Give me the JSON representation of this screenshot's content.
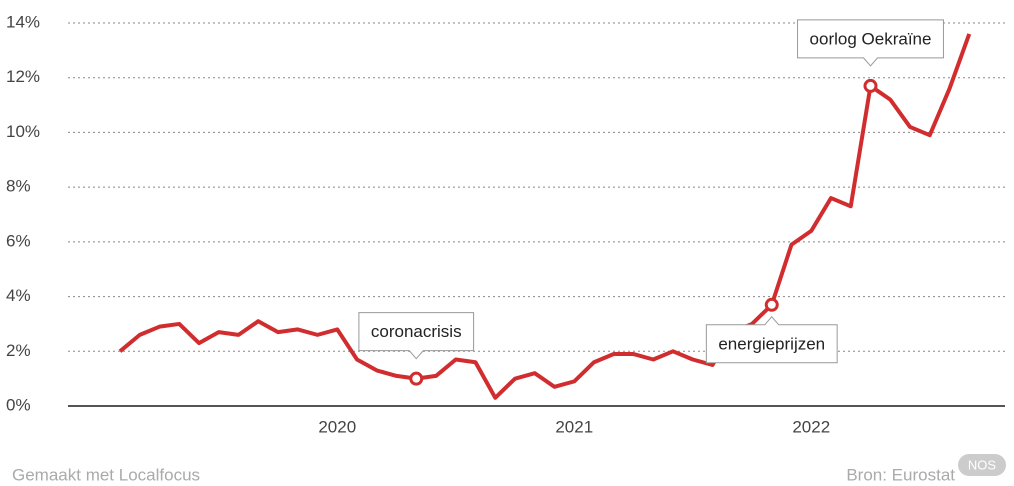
{
  "chart_data": {
    "type": "line",
    "categories": [
      null,
      null,
      null,
      null,
      null,
      null,
      null,
      null,
      null,
      null,
      null,
      "2020",
      null,
      null,
      null,
      null,
      null,
      null,
      null,
      null,
      null,
      null,
      null,
      "2021",
      null,
      null,
      null,
      null,
      null,
      null,
      null,
      null,
      null,
      null,
      null,
      "2022",
      null,
      null,
      null,
      null,
      null,
      null,
      null,
      null
    ],
    "values": [
      2.0,
      2.6,
      2.9,
      3.0,
      2.3,
      2.7,
      2.6,
      3.1,
      2.7,
      2.8,
      2.6,
      2.8,
      1.7,
      1.3,
      1.1,
      1.0,
      1.1,
      1.7,
      1.6,
      0.3,
      1.0,
      1.2,
      0.7,
      0.9,
      1.6,
      1.9,
      1.9,
      1.7,
      2.0,
      1.7,
      1.5,
      2.7,
      3.0,
      3.7,
      5.9,
      6.4,
      7.6,
      7.3,
      11.7,
      11.2,
      10.2,
      9.9,
      11.6,
      13.6
    ],
    "color": "#d12d2f",
    "ylim": [
      0,
      14
    ],
    "yticks": [
      {
        "value": 0,
        "label": "0%"
      },
      {
        "value": 2,
        "label": "2%"
      },
      {
        "value": 4,
        "label": "4%"
      },
      {
        "value": 6,
        "label": "6%"
      },
      {
        "value": 8,
        "label": "8%"
      },
      {
        "value": 10,
        "label": "10%"
      },
      {
        "value": 12,
        "label": "12%"
      },
      {
        "value": 14,
        "label": "14%"
      }
    ],
    "grid": true,
    "annotations": [
      {
        "text": "coronacrisis",
        "at": 15,
        "side": "above"
      },
      {
        "text": "energieprijzen",
        "at": 33,
        "side": "below"
      },
      {
        "text": "oorlog Oekraïne",
        "at": 38,
        "side": "above"
      }
    ],
    "footer_left": "Gemaakt met Localfocus",
    "footer_right": "Bron: Eurostat",
    "badge": "NOS"
  }
}
